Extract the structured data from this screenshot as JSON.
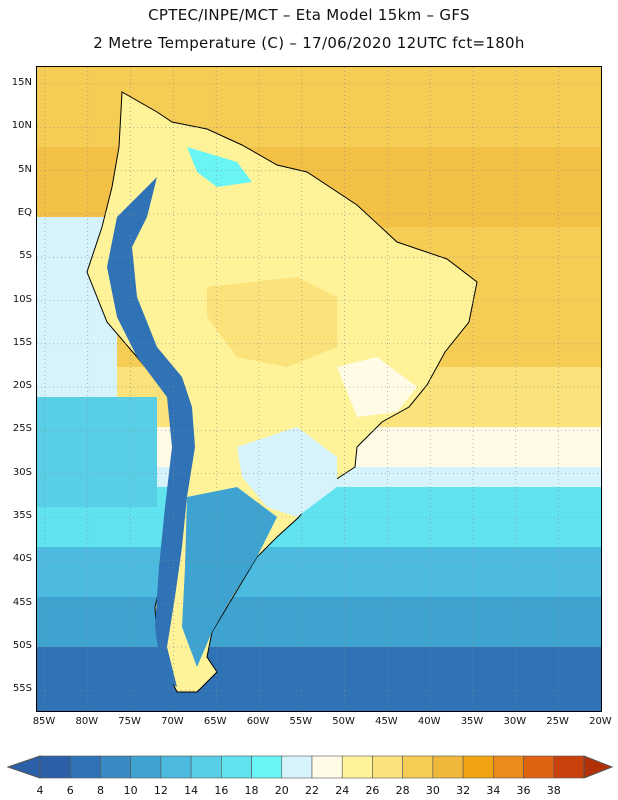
{
  "header": {
    "line1": "CPTEC/INPE/MCT –  Eta Model 15km – GFS",
    "line2": "2 Metre Temperature (C) – 17/06/2020 12UTC fct=180h"
  },
  "axes": {
    "lat_labels": [
      "15N",
      "10N",
      "5N",
      "EQ",
      "5S",
      "10S",
      "15S",
      "20S",
      "25S",
      "30S",
      "35S",
      "40S",
      "45S",
      "50S",
      "55S"
    ],
    "lon_labels": [
      "85W",
      "80W",
      "75W",
      "70W",
      "65W",
      "60W",
      "55W",
      "50W",
      "45W",
      "40W",
      "35W",
      "30W",
      "25W",
      "20W"
    ]
  },
  "colorbar": {
    "labels": [
      "4",
      "6",
      "8",
      "10",
      "12",
      "14",
      "16",
      "18",
      "20",
      "22",
      "24",
      "26",
      "28",
      "30",
      "32",
      "34",
      "36",
      "38"
    ],
    "colors": [
      "#2b5fa8",
      "#2f73b6",
      "#3a8ac4",
      "#3fa3d2",
      "#4cbbdf",
      "#58cfe6",
      "#60e3ee",
      "#69f5f6",
      "#d6f3fc",
      "#fffbe6",
      "#fff39a",
      "#fbe27a",
      "#f5cd55",
      "#efb83a",
      "#f2a312",
      "#ec8b1a",
      "#e06312",
      "#c9410c",
      "#b13008"
    ]
  }
}
